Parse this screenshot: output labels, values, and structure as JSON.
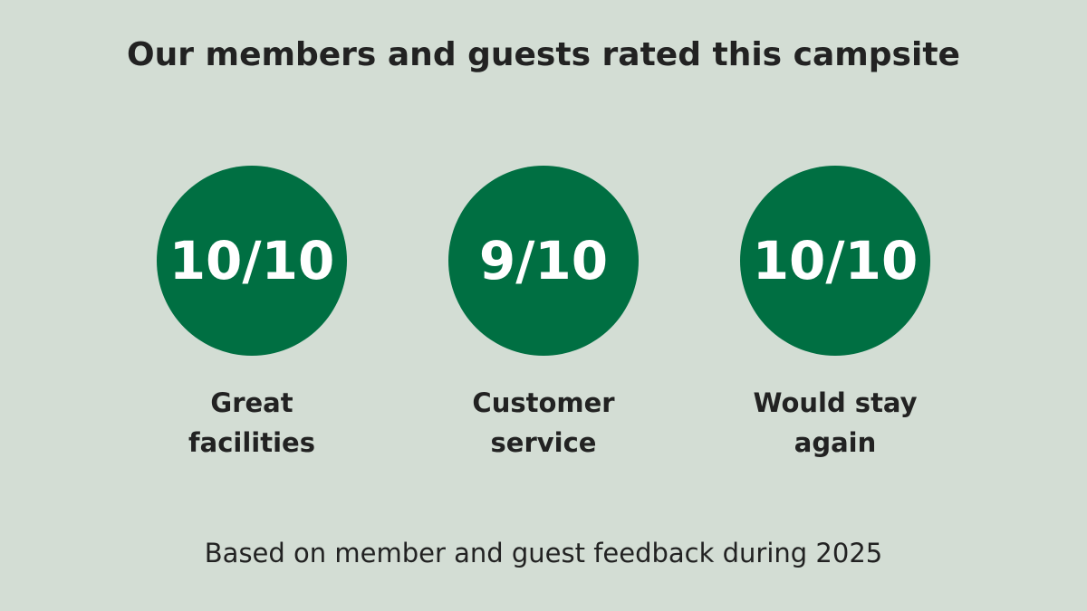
{
  "header": {
    "title": "Our members and guests rated this campsite"
  },
  "items": [
    {
      "rating": "10/10",
      "label": [
        "Great",
        "facilities"
      ]
    },
    {
      "rating": "9/10",
      "label": [
        "Customer",
        "service"
      ]
    },
    {
      "rating": "10/10",
      "label": [
        "Would stay",
        "again"
      ]
    }
  ],
  "footer": {
    "note": "Based on member and guest feedback during 2025"
  }
}
